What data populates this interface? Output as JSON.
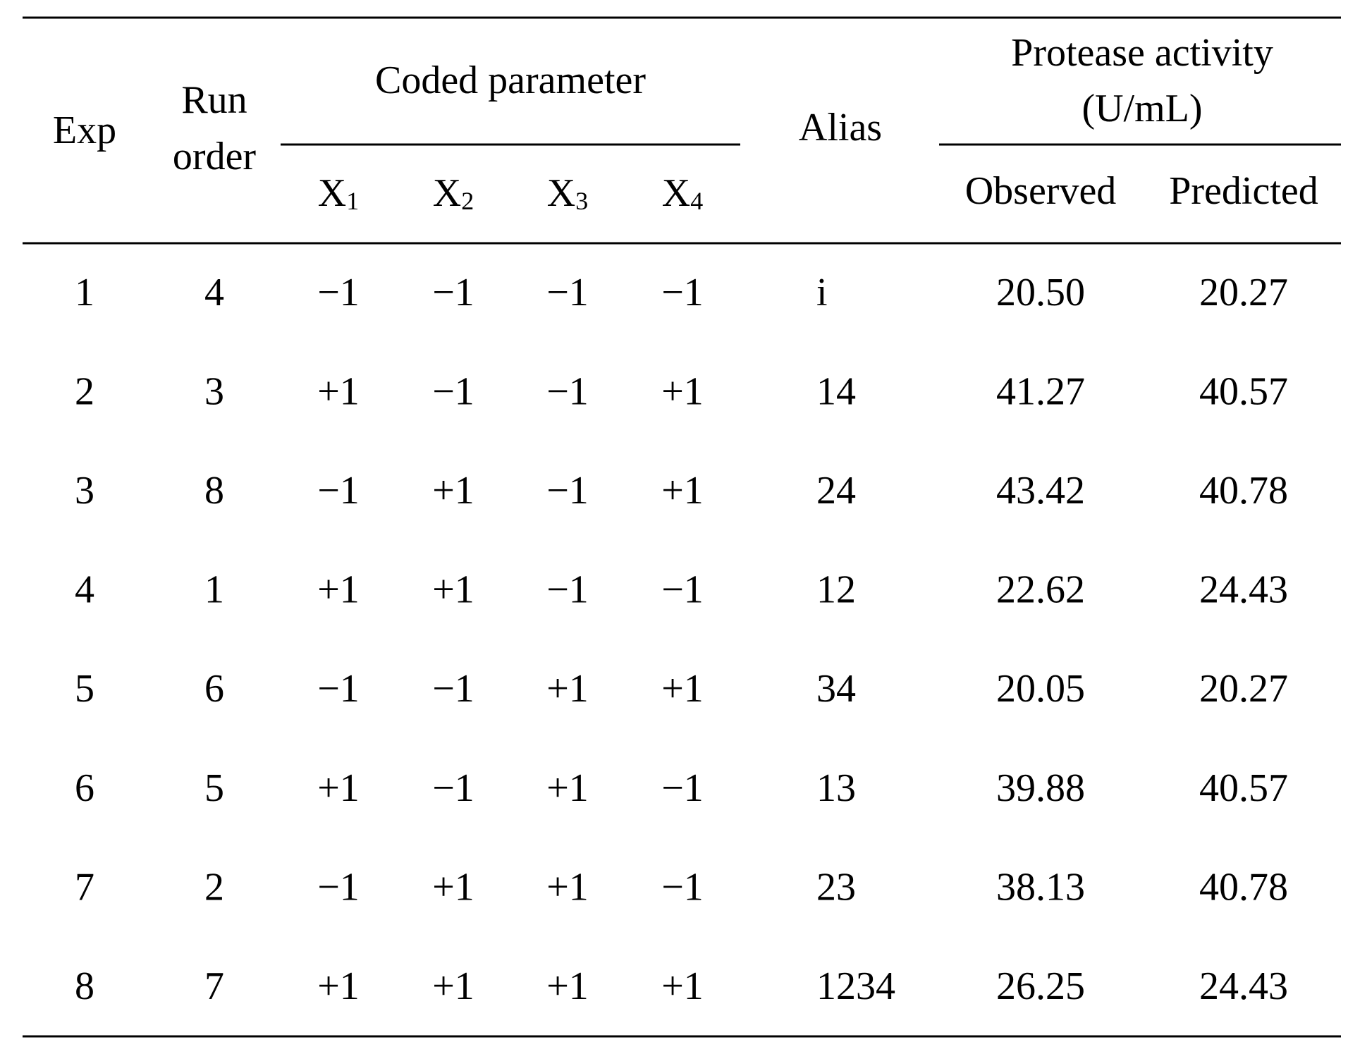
{
  "table": {
    "header": {
      "exp": "Exp",
      "run_order": [
        "Run",
        "order"
      ],
      "coded_parameter": "Coded parameter",
      "x_columns": [
        {
          "text": "X",
          "subscript": "1"
        },
        {
          "text": "X",
          "subscript": "2"
        },
        {
          "text": "X",
          "subscript": "3"
        },
        {
          "text": "X",
          "subscript": "4"
        }
      ],
      "alias": "Alias",
      "protease_activity": [
        "Protease activity",
        "(U/mL)"
      ],
      "observed": "Observed",
      "predicted": "Predicted"
    },
    "rows": [
      [
        "1",
        "4",
        "−1",
        "−1",
        "−1",
        "−1",
        "i",
        "20.50",
        "20.27"
      ],
      [
        "2",
        "3",
        "+1",
        "−1",
        "−1",
        "+1",
        "14",
        "41.27",
        "40.57"
      ],
      [
        "3",
        "8",
        "−1",
        "+1",
        "−1",
        "+1",
        "24",
        "43.42",
        "40.78"
      ],
      [
        "4",
        "1",
        "+1",
        "+1",
        "−1",
        "−1",
        "12",
        "22.62",
        "24.43"
      ],
      [
        "5",
        "6",
        "−1",
        "−1",
        "+1",
        "+1",
        "34",
        "20.05",
        "20.27"
      ],
      [
        "6",
        "5",
        "+1",
        "−1",
        "+1",
        "−1",
        "13",
        "39.88",
        "40.57"
      ],
      [
        "7",
        "2",
        "−1",
        "+1",
        "+1",
        "−1",
        "23",
        "38.13",
        "40.78"
      ],
      [
        "8",
        "7",
        "+1",
        "+1",
        "+1",
        "+1",
        "1234",
        "26.25",
        "24.43"
      ]
    ]
  }
}
